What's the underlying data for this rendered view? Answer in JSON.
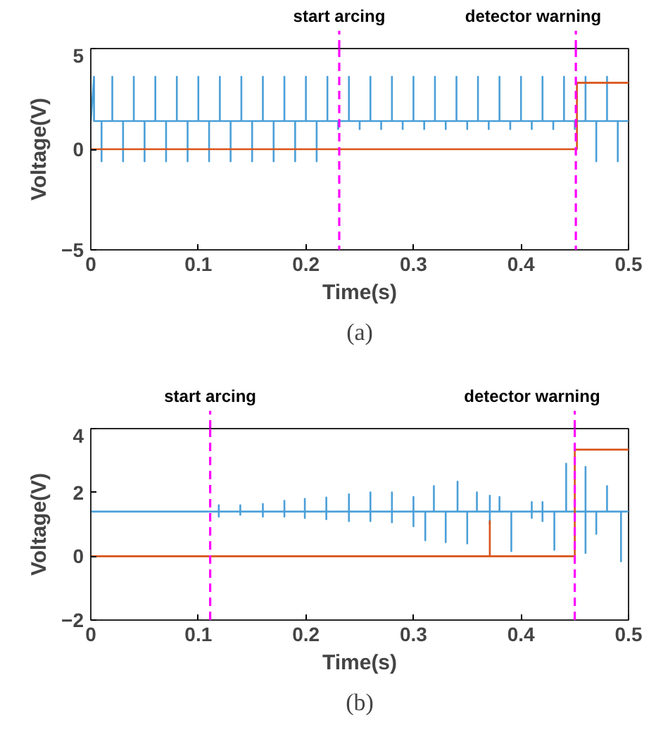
{
  "chart_data": [
    {
      "type": "line",
      "xlabel": "Time(s)",
      "ylabel": "Voltage(V)",
      "annotations": [
        "(a)"
      ],
      "xlim": [
        0,
        0.5
      ],
      "xticks": [
        0,
        0.1,
        0.2,
        0.3,
        0.4,
        0.5
      ],
      "ylim": [
        -5,
        5
      ],
      "yticks": [
        -5,
        0,
        5
      ],
      "grid": false,
      "ref_lines": [
        {
          "axis": "x",
          "value": 0.231,
          "label": "start arcing",
          "color": "#ff00ff",
          "line_style": "dashed"
        },
        {
          "axis": "x",
          "value": 0.451,
          "label": "detector warning",
          "color": "#ff00ff",
          "line_style": "dashed"
        }
      ],
      "series": [
        {
          "color": "#4a9fd8",
          "x": [
            0,
            0.003,
            0.003,
            0.01,
            0.01,
            0.01,
            0.02,
            0.02,
            0.02,
            0.03,
            0.03,
            0.03,
            0.04,
            0.04,
            0.04,
            0.05,
            0.05,
            0.05,
            0.06,
            0.06,
            0.06,
            0.07,
            0.07,
            0.07,
            0.08,
            0.08,
            0.08,
            0.09,
            0.09,
            0.09,
            0.1,
            0.1,
            0.1,
            0.11,
            0.11,
            0.11,
            0.12,
            0.12,
            0.12,
            0.13,
            0.13,
            0.13,
            0.14,
            0.14,
            0.14,
            0.15,
            0.15,
            0.15,
            0.16,
            0.16,
            0.16,
            0.17,
            0.17,
            0.17,
            0.18,
            0.18,
            0.18,
            0.19,
            0.19,
            0.19,
            0.2,
            0.2,
            0.2,
            0.21,
            0.21,
            0.21,
            0.22,
            0.22,
            0.22,
            0.23,
            0.23,
            0.23,
            0.24,
            0.24,
            0.24,
            0.25,
            0.25,
            0.25,
            0.26,
            0.26,
            0.26,
            0.27,
            0.27,
            0.27,
            0.28,
            0.28,
            0.28,
            0.29,
            0.29,
            0.29,
            0.3,
            0.3,
            0.3,
            0.31,
            0.31,
            0.31,
            0.32,
            0.32,
            0.32,
            0.33,
            0.33,
            0.33,
            0.34,
            0.34,
            0.34,
            0.35,
            0.35,
            0.35,
            0.36,
            0.36,
            0.36,
            0.37,
            0.37,
            0.37,
            0.38,
            0.38,
            0.38,
            0.39,
            0.39,
            0.39,
            0.4,
            0.4,
            0.4,
            0.41,
            0.41,
            0.41,
            0.42,
            0.42,
            0.42,
            0.43,
            0.43,
            0.43,
            0.44,
            0.44,
            0.44,
            0.45,
            0.45,
            0.45,
            0.46,
            0.46,
            0.46,
            0.47,
            0.47,
            0.47,
            0.48,
            0.48,
            0.48,
            0.49,
            0.49,
            0.49,
            0.5
          ],
          "values": [
            1.4,
            3.6,
            1.4,
            1.4,
            -0.6,
            1.4,
            1.4,
            3.6,
            1.4,
            1.4,
            -0.6,
            1.4,
            1.4,
            3.6,
            1.4,
            1.4,
            -0.6,
            1.4,
            1.4,
            3.6,
            1.4,
            1.4,
            -0.6,
            1.4,
            1.4,
            3.6,
            1.4,
            1.4,
            -0.6,
            1.4,
            1.4,
            3.6,
            1.4,
            1.4,
            -0.6,
            1.4,
            1.4,
            3.6,
            1.4,
            1.4,
            -0.6,
            1.4,
            1.4,
            3.6,
            1.4,
            1.4,
            -0.6,
            1.4,
            1.4,
            3.6,
            1.4,
            1.4,
            -0.6,
            1.4,
            1.4,
            3.6,
            1.4,
            1.4,
            -0.6,
            1.4,
            1.4,
            3.6,
            1.4,
            1.4,
            -0.6,
            1.4,
            1.4,
            3.6,
            1.4,
            1.4,
            1.0,
            1.4,
            1.4,
            3.6,
            1.4,
            1.4,
            1.0,
            1.4,
            1.4,
            3.6,
            1.4,
            1.4,
            1.0,
            1.4,
            1.4,
            3.6,
            1.4,
            1.4,
            1.0,
            1.4,
            1.4,
            3.6,
            1.4,
            1.4,
            1.0,
            1.4,
            1.4,
            3.6,
            1.4,
            1.4,
            1.0,
            1.4,
            1.4,
            3.6,
            1.4,
            1.4,
            1.0,
            1.4,
            1.4,
            3.6,
            1.4,
            1.4,
            1.0,
            1.4,
            1.4,
            3.6,
            1.4,
            1.4,
            1.0,
            1.4,
            1.4,
            3.6,
            1.4,
            1.4,
            1.0,
            1.4,
            1.4,
            3.6,
            1.4,
            1.4,
            1.0,
            1.4,
            1.4,
            3.6,
            1.4,
            1.4,
            1.0,
            1.4,
            1.4,
            3.6,
            1.4,
            1.4,
            -0.6,
            1.4,
            1.4,
            3.6,
            1.4,
            1.4,
            -0.6,
            1.4,
            1.4
          ]
        },
        {
          "color": "#d95319",
          "x": [
            0,
            0.452,
            0.452,
            0.5
          ],
          "values": [
            0,
            0,
            3.3,
            3.3
          ]
        }
      ]
    },
    {
      "type": "line",
      "xlabel": "Time(s)",
      "ylabel": "Voltage(V)",
      "annotations": [
        "(b)"
      ],
      "xlim": [
        0,
        0.5
      ],
      "xticks": [
        0,
        0.1,
        0.2,
        0.3,
        0.4,
        0.5
      ],
      "ylim": [
        -2,
        4
      ],
      "yticks": [
        -2,
        0,
        2,
        4
      ],
      "grid": false,
      "ref_lines": [
        {
          "axis": "x",
          "value": 0.111,
          "label": "start arcing",
          "color": "#ff00ff",
          "line_style": "dashed"
        },
        {
          "axis": "x",
          "value": 0.45,
          "label": "detector warning",
          "color": "#ff00ff",
          "line_style": "dashed"
        }
      ],
      "series": [
        {
          "color": "#4a9fd8",
          "x": [
            0,
            0.119,
            0.119,
            0.119,
            0.119,
            0.139,
            0.139,
            0.139,
            0.139,
            0.16,
            0.16,
            0.16,
            0.16,
            0.18,
            0.18,
            0.18,
            0.18,
            0.199,
            0.199,
            0.199,
            0.199,
            0.219,
            0.219,
            0.219,
            0.219,
            0.24,
            0.24,
            0.24,
            0.24,
            0.26,
            0.26,
            0.26,
            0.26,
            0.28,
            0.28,
            0.28,
            0.28,
            0.3,
            0.3,
            0.3,
            0.3,
            0.311,
            0.311,
            0.311,
            0.311,
            0.319,
            0.319,
            0.319,
            0.319,
            0.33,
            0.33,
            0.33,
            0.33,
            0.341,
            0.341,
            0.341,
            0.341,
            0.35,
            0.35,
            0.35,
            0.35,
            0.359,
            0.359,
            0.359,
            0.359,
            0.371,
            0.371,
            0.371,
            0.371,
            0.38,
            0.38,
            0.38,
            0.38,
            0.391,
            0.391,
            0.391,
            0.391,
            0.41,
            0.41,
            0.41,
            0.41,
            0.42,
            0.42,
            0.42,
            0.42,
            0.431,
            0.431,
            0.431,
            0.431,
            0.442,
            0.442,
            0.442,
            0.442,
            0.46,
            0.46,
            0.46,
            0.46,
            0.47,
            0.47,
            0.47,
            0.47,
            0.48,
            0.48,
            0.48,
            0.48,
            0.493,
            0.493,
            0.493,
            0.493,
            0.5
          ],
          "values": [
            1.4,
            1.4,
            1.6,
            1.24,
            1.4,
            1.4,
            1.6,
            1.3,
            1.4,
            1.4,
            1.64,
            1.24,
            1.4,
            1.4,
            1.74,
            1.24,
            1.4,
            1.4,
            1.8,
            1.2,
            1.4,
            1.4,
            1.84,
            1.16,
            1.4,
            1.4,
            1.94,
            1.1,
            1.4,
            1.4,
            2.0,
            1.1,
            1.4,
            1.4,
            2.0,
            1.06,
            1.4,
            1.4,
            1.86,
            0.94,
            1.4,
            1.4,
            1.4,
            0.5,
            1.4,
            1.4,
            2.2,
            1.4,
            1.4,
            1.4,
            1.4,
            0.44,
            1.4,
            1.4,
            2.34,
            1.4,
            1.4,
            1.4,
            1.4,
            0.4,
            1.4,
            1.4,
            2.0,
            1.4,
            1.4,
            1.4,
            1.9,
            1.0,
            1.4,
            1.4,
            1.86,
            1.4,
            1.4,
            1.4,
            1.4,
            0.16,
            1.4,
            1.4,
            1.7,
            1.2,
            1.4,
            1.4,
            1.7,
            1.1,
            1.4,
            1.4,
            1.4,
            0.2,
            1.4,
            1.4,
            2.9,
            1.4,
            1.4,
            1.4,
            2.8,
            0.1,
            1.4,
            1.4,
            1.4,
            0.7,
            1.4,
            1.4,
            2.2,
            1.4,
            1.4,
            1.4,
            1.4,
            -0.16,
            1.4,
            1.4
          ]
        },
        {
          "color": "#d95319",
          "x": [
            0,
            0.371,
            0.371,
            0.371,
            0.45,
            0.45,
            0.5
          ],
          "values": [
            0,
            0,
            1.1,
            0,
            0,
            3.34,
            3.34
          ]
        }
      ]
    }
  ]
}
